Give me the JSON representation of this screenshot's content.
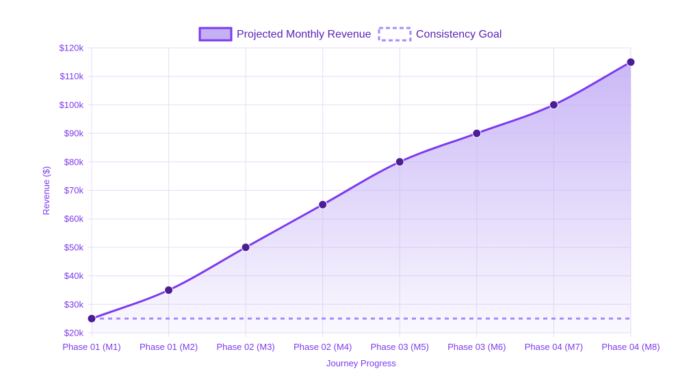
{
  "chart_data": {
    "type": "line",
    "categories": [
      "Phase 01 (M1)",
      "Phase 01 (M2)",
      "Phase 02 (M3)",
      "Phase 02 (M4)",
      "Phase 03 (M5)",
      "Phase 03 (M6)",
      "Phase 04 (M7)",
      "Phase 04 (M8)"
    ],
    "series": [
      {
        "name": "Projected Monthly Revenue",
        "values": [
          25000,
          35000,
          50000,
          65000,
          80000,
          90000,
          100000,
          115000
        ],
        "style": "solid-area",
        "color": "#7c3aed",
        "point_color": "#4c1d95"
      },
      {
        "name": "Consistency Goal",
        "values": [
          25000,
          25000,
          25000,
          25000,
          25000,
          25000,
          25000,
          25000
        ],
        "style": "dashed",
        "color": "#a78bfa"
      }
    ],
    "xlabel": "Journey Progress",
    "ylabel": "Revenue ($)",
    "ylim": [
      20000,
      120000
    ],
    "ytick_labels": [
      "$20k",
      "$30k",
      "$40k",
      "$50k",
      "$60k",
      "$70k",
      "$80k",
      "$90k",
      "$100k",
      "$110k",
      "$120k"
    ],
    "grid": true,
    "legend_position": "top-center"
  },
  "colors": {
    "accent": "#7c3aed",
    "point": "#4c1d95",
    "goal": "#a78bfa",
    "grid": "#e4dcf7",
    "fill_top": "#c4b0f5"
  }
}
